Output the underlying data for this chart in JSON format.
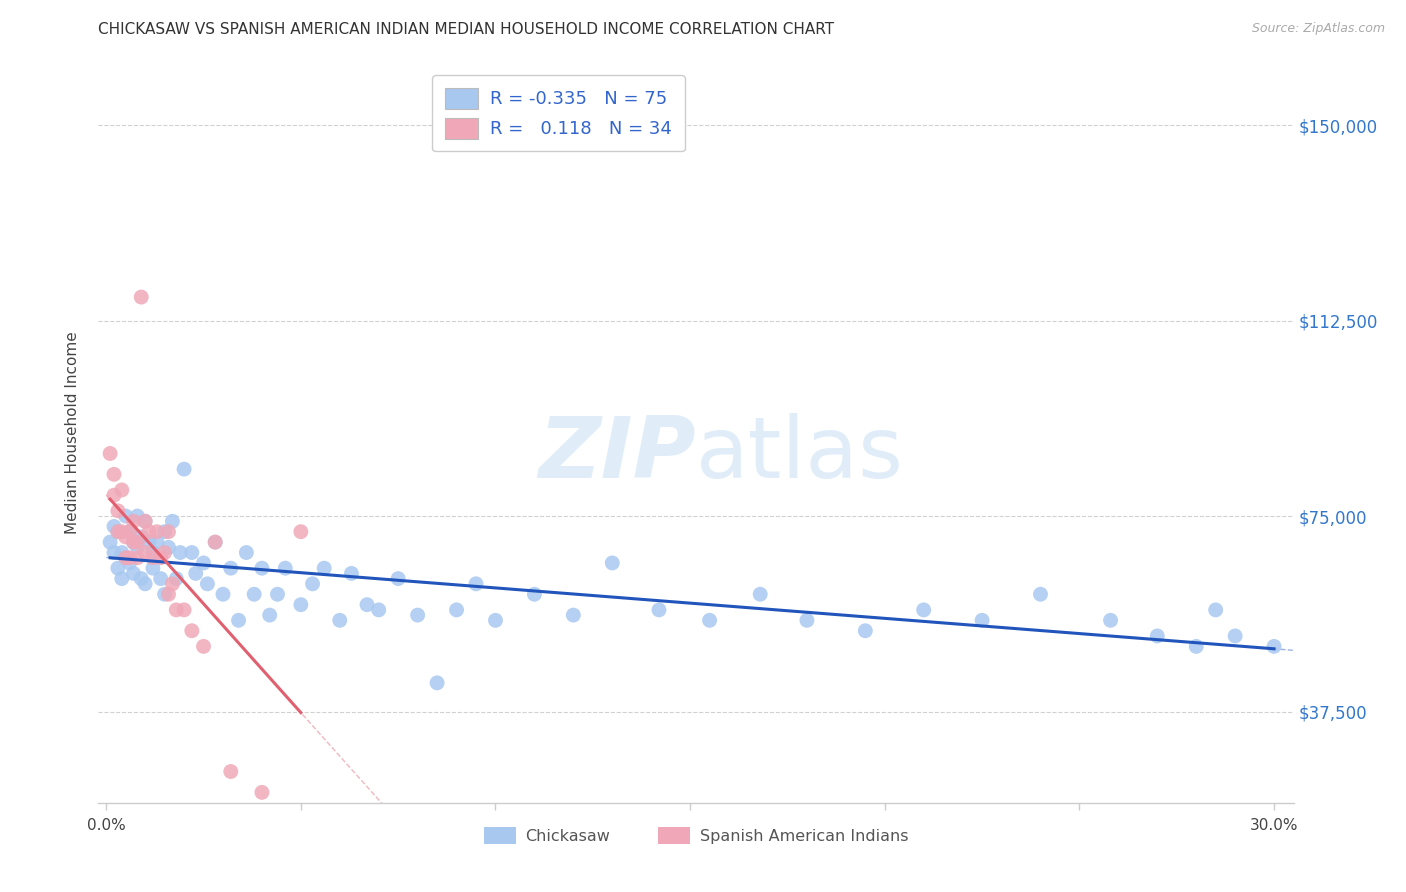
{
  "title": "CHICKASAW VS SPANISH AMERICAN INDIAN MEDIAN HOUSEHOLD INCOME CORRELATION CHART",
  "source": "Source: ZipAtlas.com",
  "ylabel": "Median Household Income",
  "yticks": [
    37500,
    75000,
    112500,
    150000
  ],
  "ytick_labels": [
    "$37,500",
    "$75,000",
    "$112,500",
    "$150,000"
  ],
  "xlim": [
    -0.002,
    0.305
  ],
  "ylim": [
    20000,
    162000
  ],
  "watermark_zip": "ZIP",
  "watermark_atlas": "atlas",
  "r_blue": -0.335,
  "n_blue": 75,
  "r_pink": 0.118,
  "n_pink": 34,
  "color_blue": "#a8c8f0",
  "color_pink": "#f0a8b8",
  "line_blue": "#2255bb",
  "line_pink": "#e06070",
  "line_pink_dash": "#f0a8b8",
  "legend_label1": "Chickasaw",
  "legend_label2": "Spanish American Indians",
  "blue_x": [
    0.001,
    0.002,
    0.002,
    0.003,
    0.003,
    0.004,
    0.004,
    0.005,
    0.005,
    0.006,
    0.006,
    0.007,
    0.007,
    0.008,
    0.008,
    0.009,
    0.009,
    0.01,
    0.01,
    0.011,
    0.012,
    0.012,
    0.013,
    0.014,
    0.015,
    0.015,
    0.016,
    0.017,
    0.018,
    0.019,
    0.02,
    0.022,
    0.023,
    0.025,
    0.026,
    0.028,
    0.03,
    0.032,
    0.034,
    0.036,
    0.038,
    0.04,
    0.042,
    0.044,
    0.046,
    0.05,
    0.053,
    0.056,
    0.06,
    0.063,
    0.067,
    0.07,
    0.075,
    0.08,
    0.085,
    0.09,
    0.095,
    0.1,
    0.11,
    0.12,
    0.13,
    0.142,
    0.155,
    0.168,
    0.18,
    0.195,
    0.21,
    0.225,
    0.24,
    0.258,
    0.27,
    0.28,
    0.285,
    0.29,
    0.3
  ],
  "blue_y": [
    70000,
    73000,
    68000,
    72000,
    65000,
    68000,
    63000,
    75000,
    67000,
    72000,
    66000,
    70000,
    64000,
    75000,
    69000,
    71000,
    63000,
    74000,
    62000,
    70000,
    68000,
    65000,
    70000,
    63000,
    72000,
    60000,
    69000,
    74000,
    63000,
    68000,
    84000,
    68000,
    64000,
    66000,
    62000,
    70000,
    60000,
    65000,
    55000,
    68000,
    60000,
    65000,
    56000,
    60000,
    65000,
    58000,
    62000,
    65000,
    55000,
    64000,
    58000,
    57000,
    63000,
    56000,
    43000,
    57000,
    62000,
    55000,
    60000,
    56000,
    66000,
    57000,
    55000,
    60000,
    55000,
    53000,
    57000,
    55000,
    60000,
    55000,
    52000,
    50000,
    57000,
    52000,
    50000
  ],
  "pink_x": [
    0.001,
    0.002,
    0.002,
    0.003,
    0.003,
    0.004,
    0.004,
    0.005,
    0.005,
    0.006,
    0.006,
    0.007,
    0.007,
    0.008,
    0.008,
    0.009,
    0.01,
    0.01,
    0.011,
    0.012,
    0.013,
    0.014,
    0.015,
    0.016,
    0.016,
    0.017,
    0.018,
    0.02,
    0.022,
    0.025,
    0.028,
    0.032,
    0.04,
    0.05
  ],
  "pink_y": [
    87000,
    83000,
    79000,
    76000,
    72000,
    80000,
    72000,
    71000,
    67000,
    72000,
    67000,
    74000,
    70000,
    70000,
    67000,
    117000,
    74000,
    68000,
    72000,
    67000,
    72000,
    67000,
    68000,
    60000,
    72000,
    62000,
    57000,
    57000,
    53000,
    50000,
    70000,
    26000,
    22000,
    72000
  ]
}
